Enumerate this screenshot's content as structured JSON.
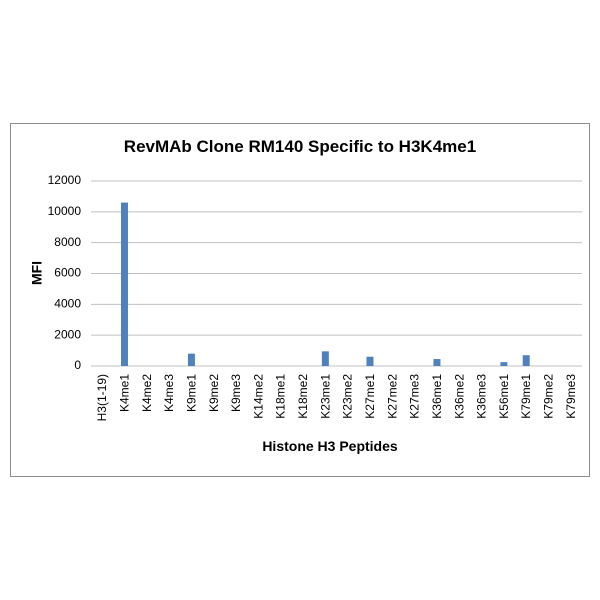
{
  "chart_data": {
    "type": "bar",
    "title": "RevMAb Clone RM140 Specific to H3K4me1",
    "x_label": "Histone H3 Peptides",
    "y_label": "MFI",
    "categories": [
      "H3(1-19)",
      "K4me1",
      "K4me2",
      "K4me3",
      "K9me1",
      "K9me2",
      "K9me3",
      "K14me2",
      "K18me1",
      "K18me2",
      "K23me1",
      "K23me2",
      "K27me1",
      "K27me2",
      "K27me3",
      "K36me1",
      "K36me2",
      "K36me3",
      "K56me1",
      "K79me1",
      "K79me2",
      "K79me3"
    ],
    "values": [
      0,
      10600,
      0,
      0,
      800,
      0,
      0,
      0,
      0,
      0,
      950,
      0,
      600,
      0,
      0,
      450,
      0,
      0,
      250,
      700,
      0,
      0
    ],
    "color": "#4f81bd",
    "ylim": [
      0,
      12000
    ],
    "yticks": [
      0,
      2000,
      4000,
      6000,
      8000,
      10000,
      12000
    ],
    "grid": true
  }
}
